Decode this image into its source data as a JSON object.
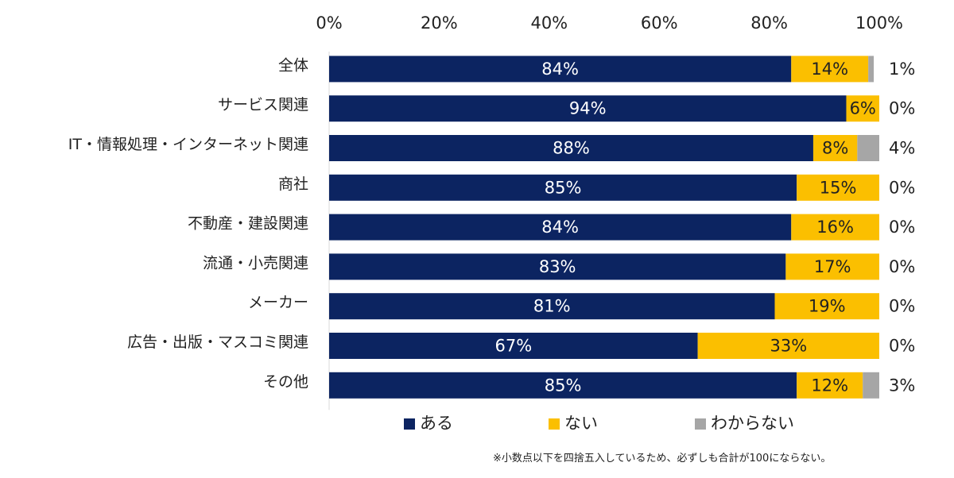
{
  "chart_data": {
    "type": "bar",
    "orientation": "horizontal",
    "stacked": true,
    "categories": [
      "全体",
      "サービス関連",
      "IT・情報処理・インターネット関連",
      "商社",
      "不動産・建設関連",
      "流通・小売関連",
      "メーカー",
      "広告・出版・マスコミ関連",
      "その他"
    ],
    "series": [
      {
        "name": "ある",
        "color": "#0c2461",
        "values": [
          84,
          94,
          88,
          85,
          84,
          83,
          81,
          67,
          85
        ]
      },
      {
        "name": "ない",
        "color": "#fbbf00",
        "values": [
          14,
          6,
          8,
          15,
          16,
          17,
          19,
          33,
          12
        ]
      },
      {
        "name": "わからない",
        "color": "#a6a6a6",
        "values": [
          1,
          0,
          4,
          0,
          0,
          0,
          0,
          0,
          3
        ]
      }
    ],
    "xlim": [
      0,
      100
    ],
    "xticks": [
      "0%",
      "20%",
      "40%",
      "60%",
      "80%",
      "100%"
    ],
    "value_suffix": "%",
    "legend_position": "bottom",
    "grid": false
  },
  "footnote": "※小数点以下を四捨五入しているため、必ずしも合計が100にならない。"
}
